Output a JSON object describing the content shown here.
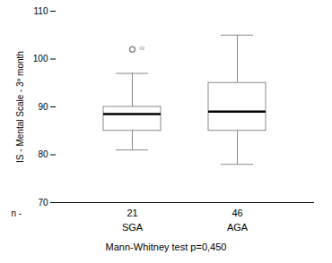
{
  "chart_data": {
    "type": "box",
    "categories": [
      "SGA",
      "AGA"
    ],
    "n_title": "n -",
    "n": [
      "21",
      "46"
    ],
    "boxes": [
      {
        "median": 88.5,
        "q1": 85,
        "q3": 90,
        "whislo": 81,
        "whishi": 97,
        "fliers": [
          102
        ]
      },
      {
        "median": 89,
        "q1": 85,
        "q3": 95,
        "whislo": 78,
        "whishi": 105,
        "fliers": []
      }
    ],
    "annotations": [
      {
        "category": "SGA",
        "y": 102,
        "text": "º²"
      }
    ],
    "ylabel": "IS - Mental Scale - 3º month",
    "ylim": [
      70,
      110
    ],
    "yticks": [
      70,
      80,
      90,
      100,
      110
    ],
    "caption": "Mann-Whitney test p=0,450",
    "color": "#888888",
    "tick_labels": "y"
  }
}
